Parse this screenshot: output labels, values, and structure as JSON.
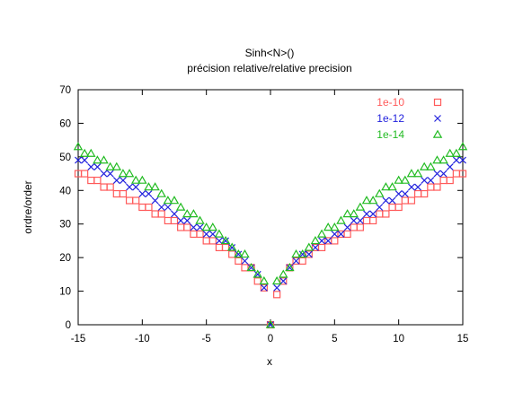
{
  "chart_data": {
    "type": "scatter",
    "title": "Sinh<N>()",
    "subtitle": "précision relative/relative precision",
    "xlabel": "x",
    "ylabel": "ordre/order",
    "xlim": [
      -15,
      15
    ],
    "ylim": [
      0,
      70
    ],
    "xticks": [
      -15,
      -10,
      -5,
      0,
      5,
      10,
      15
    ],
    "yticks": [
      0,
      10,
      20,
      30,
      40,
      50,
      60,
      70
    ],
    "legend_position": "top-right",
    "series": [
      {
        "name": "1e-10",
        "marker": "square",
        "color": "#ff5a5a",
        "points": [
          [
            -15,
            45
          ],
          [
            -14.5,
            45
          ],
          [
            -14,
            43
          ],
          [
            -13.5,
            43
          ],
          [
            -13,
            41
          ],
          [
            -12.5,
            41
          ],
          [
            -12,
            39
          ],
          [
            -11.5,
            39
          ],
          [
            -11,
            37
          ],
          [
            -10.5,
            37
          ],
          [
            -10,
            35
          ],
          [
            -9.5,
            35
          ],
          [
            -9,
            33
          ],
          [
            -8.5,
            33
          ],
          [
            -8,
            31
          ],
          [
            -7.5,
            31
          ],
          [
            -7,
            29
          ],
          [
            -6.5,
            29
          ],
          [
            -6,
            27
          ],
          [
            -5.5,
            27
          ],
          [
            -5,
            25
          ],
          [
            -4.5,
            25
          ],
          [
            -4,
            23
          ],
          [
            -3.5,
            23
          ],
          [
            -3,
            21
          ],
          [
            -2.5,
            19
          ],
          [
            -2,
            17
          ],
          [
            -1.5,
            17
          ],
          [
            -1,
            13
          ],
          [
            -0.5,
            11
          ],
          [
            0,
            0
          ],
          [
            0.5,
            9
          ],
          [
            1,
            13
          ],
          [
            1.5,
            17
          ],
          [
            2,
            19
          ],
          [
            2.5,
            19
          ],
          [
            3,
            21
          ],
          [
            3.5,
            23
          ],
          [
            4,
            23
          ],
          [
            4.5,
            25
          ],
          [
            5,
            25
          ],
          [
            5.5,
            27
          ],
          [
            6,
            27
          ],
          [
            6.5,
            29
          ],
          [
            7,
            29
          ],
          [
            7.5,
            31
          ],
          [
            8,
            31
          ],
          [
            8.5,
            33
          ],
          [
            9,
            33
          ],
          [
            9.5,
            35
          ],
          [
            10,
            35
          ],
          [
            10.5,
            37
          ],
          [
            11,
            37
          ],
          [
            11.5,
            39
          ],
          [
            12,
            39
          ],
          [
            12.5,
            41
          ],
          [
            13,
            41
          ],
          [
            13.5,
            43
          ],
          [
            14,
            43
          ],
          [
            14.5,
            45
          ],
          [
            15,
            45
          ]
        ]
      },
      {
        "name": "1e-12",
        "marker": "cross",
        "color": "#2222dd",
        "points": [
          [
            -15,
            49
          ],
          [
            -14.5,
            49
          ],
          [
            -14,
            47
          ],
          [
            -13.5,
            47
          ],
          [
            -13,
            45
          ],
          [
            -12.5,
            45
          ],
          [
            -12,
            43
          ],
          [
            -11.5,
            43
          ],
          [
            -11,
            41
          ],
          [
            -10.5,
            41
          ],
          [
            -10,
            39
          ],
          [
            -9.5,
            39
          ],
          [
            -9,
            37
          ],
          [
            -8.5,
            35
          ],
          [
            -8,
            35
          ],
          [
            -7.5,
            33
          ],
          [
            -7,
            31
          ],
          [
            -6.5,
            31
          ],
          [
            -6,
            29
          ],
          [
            -5.5,
            29
          ],
          [
            -5,
            27
          ],
          [
            -4.5,
            27
          ],
          [
            -4,
            25
          ],
          [
            -3.5,
            25
          ],
          [
            -3,
            23
          ],
          [
            -2.5,
            21
          ],
          [
            -2,
            19
          ],
          [
            -1.5,
            17
          ],
          [
            -1,
            15
          ],
          [
            -0.5,
            11
          ],
          [
            0,
            0
          ],
          [
            0.5,
            11
          ],
          [
            1,
            13
          ],
          [
            1.5,
            17
          ],
          [
            2,
            19
          ],
          [
            2.5,
            21
          ],
          [
            3,
            21
          ],
          [
            3.5,
            23
          ],
          [
            4,
            25
          ],
          [
            4.5,
            25
          ],
          [
            5,
            27
          ],
          [
            5.5,
            27
          ],
          [
            6,
            29
          ],
          [
            6.5,
            31
          ],
          [
            7,
            31
          ],
          [
            7.5,
            33
          ],
          [
            8,
            33
          ],
          [
            8.5,
            35
          ],
          [
            9,
            37
          ],
          [
            9.5,
            37
          ],
          [
            10,
            39
          ],
          [
            10.5,
            39
          ],
          [
            11,
            41
          ],
          [
            11.5,
            41
          ],
          [
            12,
            43
          ],
          [
            12.5,
            43
          ],
          [
            13,
            45
          ],
          [
            13.5,
            45
          ],
          [
            14,
            47
          ],
          [
            14.5,
            49
          ],
          [
            15,
            49
          ]
        ]
      },
      {
        "name": "1e-14",
        "marker": "triangle",
        "color": "#22bb22",
        "points": [
          [
            -15,
            53
          ],
          [
            -14.5,
            51
          ],
          [
            -14,
            51
          ],
          [
            -13.5,
            49
          ],
          [
            -13,
            49
          ],
          [
            -12.5,
            47
          ],
          [
            -12,
            47
          ],
          [
            -11.5,
            45
          ],
          [
            -11,
            45
          ],
          [
            -10.5,
            43
          ],
          [
            -10,
            43
          ],
          [
            -9.5,
            41
          ],
          [
            -9,
            41
          ],
          [
            -8.5,
            39
          ],
          [
            -8,
            37
          ],
          [
            -7.5,
            37
          ],
          [
            -7,
            35
          ],
          [
            -6.5,
            33
          ],
          [
            -6,
            33
          ],
          [
            -5.5,
            31
          ],
          [
            -5,
            29
          ],
          [
            -4.5,
            29
          ],
          [
            -4,
            27
          ],
          [
            -3.5,
            25
          ],
          [
            -3,
            23
          ],
          [
            -2.5,
            21
          ],
          [
            -2,
            21
          ],
          [
            -1.5,
            17
          ],
          [
            -1,
            15
          ],
          [
            -0.5,
            13
          ],
          [
            0,
            0
          ],
          [
            0.5,
            13
          ],
          [
            1,
            15
          ],
          [
            1.5,
            17
          ],
          [
            2,
            21
          ],
          [
            2.5,
            21
          ],
          [
            3,
            23
          ],
          [
            3.5,
            25
          ],
          [
            4,
            27
          ],
          [
            4.5,
            29
          ],
          [
            5,
            29
          ],
          [
            5.5,
            31
          ],
          [
            6,
            33
          ],
          [
            6.5,
            33
          ],
          [
            7,
            35
          ],
          [
            7.5,
            37
          ],
          [
            8,
            37
          ],
          [
            8.5,
            39
          ],
          [
            9,
            41
          ],
          [
            9.5,
            41
          ],
          [
            10,
            43
          ],
          [
            10.5,
            43
          ],
          [
            11,
            45
          ],
          [
            11.5,
            45
          ],
          [
            12,
            47
          ],
          [
            12.5,
            47
          ],
          [
            13,
            49
          ],
          [
            13.5,
            49
          ],
          [
            14,
            51
          ],
          [
            14.5,
            51
          ],
          [
            15,
            53
          ]
        ]
      }
    ]
  }
}
